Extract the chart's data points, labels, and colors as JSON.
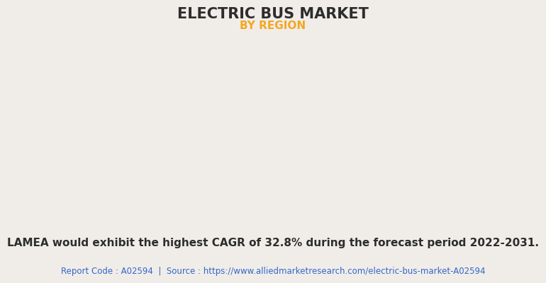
{
  "title": "ELECTRIC BUS MARKET",
  "subtitle": "BY REGION",
  "title_color": "#2d2d2d",
  "subtitle_color": "#f5a623",
  "background_color": "#f0ede8",
  "map_land_color": "#8fbb8f",
  "map_water_color": "#f0ede8",
  "map_border_color": "#6699bb",
  "usa_color": "#e8e8ec",
  "shadow_color": "#aaaaaa",
  "annotation_text": "LAMEA would exhibit the highest CAGR of 32.8% during the forecast period 2022-2031.",
  "annotation_bold_parts": [
    "LAMEA",
    "32.8%",
    "2022-2031."
  ],
  "source_text": "Report Code : A02594  |  Source : https://www.alliedmarketresearch.com/electric-bus-market-A02594",
  "source_color": "#3366cc",
  "annotation_fontsize": 11,
  "source_fontsize": 8.5,
  "title_fontsize": 15,
  "subtitle_fontsize": 11
}
